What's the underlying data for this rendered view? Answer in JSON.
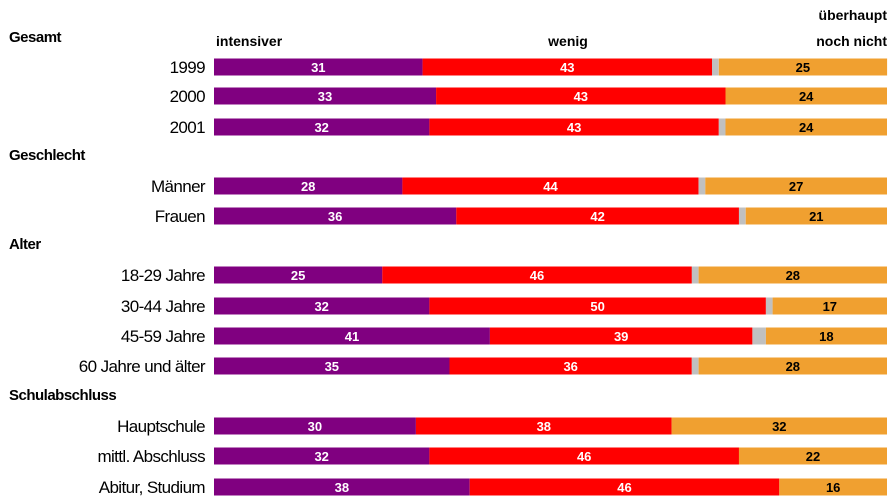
{
  "chart_data": {
    "type": "bar",
    "orientation": "horizontal",
    "stacked": true,
    "xlim": [
      0,
      100
    ],
    "grid": false,
    "legend_placement": "top",
    "series": [
      {
        "name": "intensiver",
        "color": "#800080"
      },
      {
        "name": "wenig",
        "color": "#ff0000"
      },
      {
        "name": "",
        "color": "#c0c0c0"
      },
      {
        "name": "überhaupt noch nicht",
        "color": "#f0a030"
      }
    ],
    "legend_lines": {
      "intensiver": [
        "intensiver"
      ],
      "wenig": [
        "wenig"
      ],
      "not_at_all": [
        "überhaupt",
        "noch nicht"
      ]
    },
    "groups": [
      {
        "title": "Gesamt",
        "rows": [
          {
            "label": "1999",
            "values": [
              31,
              43,
              1,
              25
            ]
          },
          {
            "label": "2000",
            "values": [
              33,
              43,
              0,
              24
            ]
          },
          {
            "label": "2001",
            "values": [
              32,
              43,
              1,
              24
            ]
          }
        ]
      },
      {
        "title": "Geschlecht",
        "rows": [
          {
            "label": "Männer",
            "values": [
              28,
              44,
              1,
              27
            ]
          },
          {
            "label": "Frauen",
            "values": [
              36,
              42,
              1,
              21
            ]
          }
        ]
      },
      {
        "title": "Alter",
        "rows": [
          {
            "label": "18-29 Jahre",
            "values": [
              25,
              46,
              1,
              28
            ]
          },
          {
            "label": "30-44 Jahre",
            "values": [
              32,
              50,
              1,
              17
            ]
          },
          {
            "label": "45-59 Jahre",
            "values": [
              41,
              39,
              2,
              18
            ]
          },
          {
            "label": "60 Jahre und älter",
            "values": [
              35,
              36,
              1,
              28
            ]
          }
        ]
      },
      {
        "title": "Schulabschluss",
        "rows": [
          {
            "label": "Hauptschule",
            "values": [
              30,
              38,
              0,
              32
            ]
          },
          {
            "label": "mittl. Abschluss",
            "values": [
              32,
              46,
              0,
              22
            ]
          },
          {
            "label": "Abitur, Studium",
            "values": [
              38,
              46,
              0,
              16
            ]
          }
        ]
      }
    ]
  }
}
